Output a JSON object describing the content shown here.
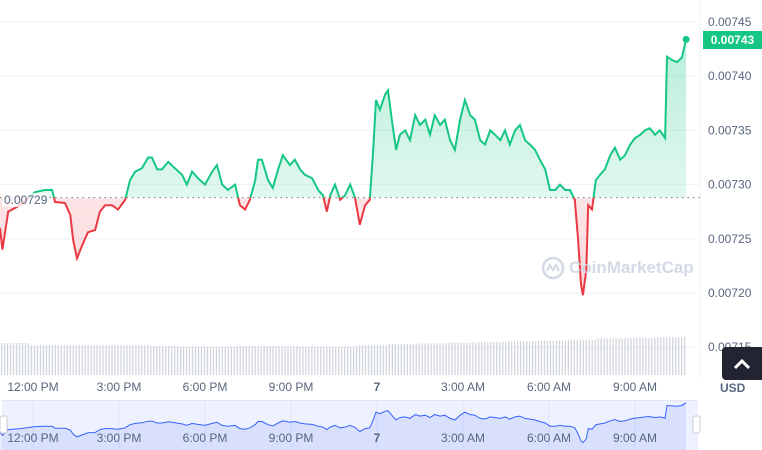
{
  "chart_data": {
    "type": "line",
    "currency": "USD",
    "current_price": "0.00743",
    "baseline_label": "0.00729",
    "baseline": 0.007288,
    "ylim": [
      0.00712,
      0.00747
    ],
    "yticks": [
      "0.00745",
      "0.00740",
      "0.00735",
      "0.00730",
      "0.00725",
      "0.00720",
      "0.00715"
    ],
    "xticks": [
      "12:00 PM",
      "3:00 PM",
      "6:00 PM",
      "9:00 PM",
      "7",
      "3:00 AM",
      "6:00 AM",
      "9:00 AM"
    ],
    "colors": {
      "up": "#16c784",
      "down": "#ea3943",
      "navigator": "#3861fb",
      "grid": "#eff2f5"
    },
    "grid": true,
    "series": [
      [
        "6 10:51",
        0.00726
      ],
      [
        "6 10:56",
        0.00724
      ],
      [
        "6 11:08",
        0.007275
      ],
      [
        "6 11:33",
        0.007281
      ],
      [
        "6 12:04",
        0.007293
      ],
      [
        "6 12:25",
        0.007295
      ],
      [
        "6 12:40",
        0.007295
      ],
      [
        "6 12:46",
        0.007284
      ],
      [
        "6 13:07",
        0.007283
      ],
      [
        "6 13:18",
        0.007272
      ],
      [
        "6 13:24",
        0.007249
      ],
      [
        "6 13:32",
        0.007232
      ],
      [
        "6 13:43",
        0.007244
      ],
      [
        "6 13:55",
        0.007256
      ],
      [
        "6 14:10",
        0.007258
      ],
      [
        "6 14:20",
        0.007275
      ],
      [
        "6 14:31",
        0.007281
      ],
      [
        "6 14:45",
        0.007281
      ],
      [
        "6 14:58",
        0.007277
      ],
      [
        "6 15:13",
        0.007286
      ],
      [
        "6 15:23",
        0.007304
      ],
      [
        "6 15:34",
        0.007312
      ],
      [
        "6 15:48",
        0.007315
      ],
      [
        "6 16:01",
        0.007325
      ],
      [
        "6 16:09",
        0.007325
      ],
      [
        "6 16:20",
        0.007314
      ],
      [
        "6 16:30",
        0.007314
      ],
      [
        "6 16:43",
        0.007321
      ],
      [
        "6 16:57",
        0.007315
      ],
      [
        "6 17:12",
        0.007309
      ],
      [
        "6 17:22",
        0.0073
      ],
      [
        "6 17:33",
        0.007312
      ],
      [
        "6 17:45",
        0.007306
      ],
      [
        "6 18:00",
        0.0073
      ],
      [
        "6 18:15",
        0.007312
      ],
      [
        "6 18:25",
        0.007318
      ],
      [
        "6 18:36",
        0.0073
      ],
      [
        "6 18:48",
        0.007295
      ],
      [
        "6 19:03",
        0.0073
      ],
      [
        "6 19:13",
        0.007281
      ],
      [
        "6 19:24",
        0.007277
      ],
      [
        "6 19:34",
        0.007286
      ],
      [
        "6 19:45",
        0.007304
      ],
      [
        "6 19:51",
        0.007323
      ],
      [
        "6 19:59",
        0.007323
      ],
      [
        "6 20:12",
        0.007304
      ],
      [
        "6 20:22",
        0.007297
      ],
      [
        "6 20:33",
        0.007314
      ],
      [
        "6 20:43",
        0.007327
      ],
      [
        "6 20:58",
        0.007318
      ],
      [
        "6 21:08",
        0.007323
      ],
      [
        "6 21:19",
        0.007314
      ],
      [
        "6 21:29",
        0.007309
      ],
      [
        "6 21:44",
        0.007306
      ],
      [
        "6 21:57",
        0.007295
      ],
      [
        "6 22:07",
        0.00729
      ],
      [
        "6 22:15",
        0.007275
      ],
      [
        "6 22:22",
        0.00729
      ],
      [
        "6 22:32",
        0.0073
      ],
      [
        "6 22:43",
        0.007286
      ],
      [
        "6 22:53",
        0.00729
      ],
      [
        "6 23:04",
        0.0073
      ],
      [
        "6 23:14",
        0.007288
      ],
      [
        "6 23:24",
        0.007263
      ],
      [
        "6 23:35",
        0.007281
      ],
      [
        "6 23:45",
        0.007286
      ],
      [
        "6 23:52",
        0.007332
      ],
      [
        "6 23:58",
        0.007378
      ],
      [
        "7 00:06",
        0.007369
      ],
      [
        "7 00:17",
        0.007383
      ],
      [
        "7 00:23",
        0.007387
      ],
      [
        "7 00:31",
        0.00736
      ],
      [
        "7 00:40",
        0.007332
      ],
      [
        "7 00:48",
        0.007346
      ],
      [
        "7 00:59",
        0.00735
      ],
      [
        "7 01:09",
        0.007341
      ],
      [
        "7 01:20",
        0.007364
      ],
      [
        "7 01:30",
        0.007355
      ],
      [
        "7 01:41",
        0.00736
      ],
      [
        "7 01:51",
        0.007346
      ],
      [
        "7 02:01",
        0.007364
      ],
      [
        "7 02:12",
        0.007355
      ],
      [
        "7 02:22",
        0.00736
      ],
      [
        "7 02:33",
        0.007341
      ],
      [
        "7 02:43",
        0.007332
      ],
      [
        "7 02:54",
        0.00736
      ],
      [
        "7 03:04",
        0.007378
      ],
      [
        "7 03:15",
        0.007364
      ],
      [
        "7 03:25",
        0.00736
      ],
      [
        "7 03:36",
        0.007341
      ],
      [
        "7 03:46",
        0.007337
      ],
      [
        "7 03:57",
        0.00735
      ],
      [
        "7 04:07",
        0.007346
      ],
      [
        "7 04:18",
        0.007341
      ],
      [
        "7 04:28",
        0.00735
      ],
      [
        "7 04:38",
        0.007337
      ],
      [
        "7 04:49",
        0.00735
      ],
      [
        "7 04:59",
        0.007355
      ],
      [
        "7 05:10",
        0.007341
      ],
      [
        "7 05:20",
        0.007337
      ],
      [
        "7 05:31",
        0.007332
      ],
      [
        "7 05:41",
        0.007323
      ],
      [
        "7 05:52",
        0.007314
      ],
      [
        "7 06:02",
        0.007295
      ],
      [
        "7 06:13",
        0.007295
      ],
      [
        "7 06:23",
        0.0073
      ],
      [
        "7 06:34",
        0.007295
      ],
      [
        "7 06:44",
        0.007295
      ],
      [
        "7 06:54",
        0.007286
      ],
      [
        "7 07:01",
        0.007249
      ],
      [
        "7 07:07",
        0.007208
      ],
      [
        "7 07:11",
        0.007198
      ],
      [
        "7 07:18",
        0.007221
      ],
      [
        "7 07:22",
        0.007281
      ],
      [
        "7 07:30",
        0.007277
      ],
      [
        "7 07:38",
        0.007304
      ],
      [
        "7 07:47",
        0.007309
      ],
      [
        "7 07:57",
        0.007314
      ],
      [
        "7 08:08",
        0.007327
      ],
      [
        "7 08:18",
        0.007334
      ],
      [
        "7 08:29",
        0.007323
      ],
      [
        "7 08:39",
        0.007327
      ],
      [
        "7 08:50",
        0.007337
      ],
      [
        "7 09:00",
        0.007343
      ],
      [
        "7 09:11",
        0.007346
      ],
      [
        "7 09:21",
        0.00735
      ],
      [
        "7 09:31",
        0.007352
      ],
      [
        "7 09:42",
        0.007346
      ],
      [
        "7 09:52",
        0.00735
      ],
      [
        "7 10:03",
        0.007343
      ],
      [
        "7 10:07",
        0.007418
      ],
      [
        "7 10:17",
        0.007415
      ],
      [
        "7 10:28",
        0.007413
      ],
      [
        "7 10:38",
        0.007417
      ],
      [
        "7 10:47",
        0.007434
      ]
    ],
    "volume_relative": [
      0.97,
      0.9,
      0.9,
      0.9,
      0.9,
      0.88,
      0.86,
      0.86,
      0.88,
      0.88,
      0.86,
      0.86,
      0.9,
      0.94,
      0.96,
      0.98,
      1.0,
      1.02,
      1.04,
      1.07,
      1.11,
      1.12,
      1.14,
      1.16
    ]
  },
  "watermark": "CoinMarketCap",
  "controls": {
    "scroll_top_icon": "chevron-up-icon",
    "currency_label": "USD"
  }
}
